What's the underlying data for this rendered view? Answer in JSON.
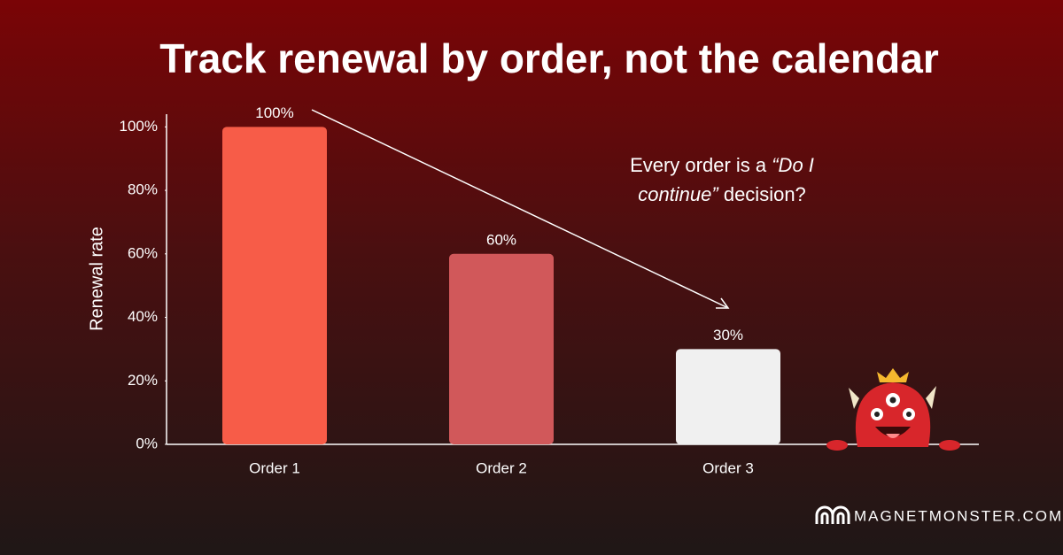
{
  "chart_data": {
    "type": "bar",
    "title": "Track renewal by order, not the calendar",
    "y_label": "Renewal rate",
    "categories": [
      "Order 1",
      "Order 2",
      "Order 3"
    ],
    "values": [
      100,
      60,
      30
    ],
    "value_labels": [
      "100%",
      "60%",
      "30%"
    ],
    "colors": [
      "#f75c48",
      "#d1585a",
      "#f0f0f0"
    ],
    "ylim": [
      0,
      104
    ],
    "yticks": [
      {
        "value": 0,
        "label": "0%"
      },
      {
        "value": 20,
        "label": "20%"
      },
      {
        "value": 40,
        "label": "40%"
      },
      {
        "value": 60,
        "label": "60%"
      },
      {
        "value": 80,
        "label": "80%"
      },
      {
        "value": 100,
        "label": "100%"
      }
    ],
    "grid": false,
    "annotation": [
      "Every order is a ",
      "“Do I continue”",
      " decision?"
    ],
    "brand": "MAGNETMONSTER.COM"
  }
}
